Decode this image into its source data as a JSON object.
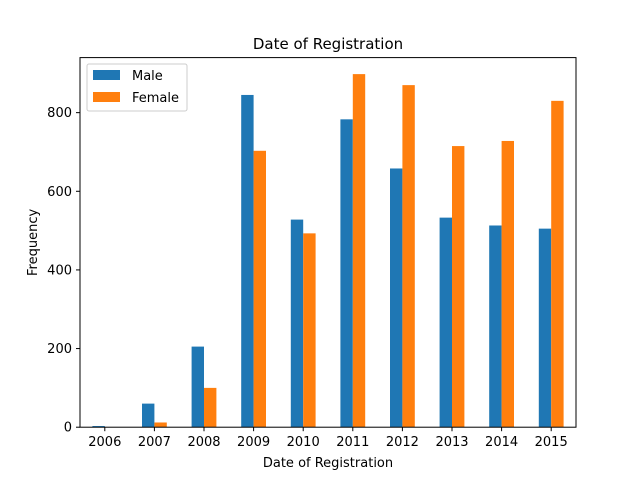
{
  "chart_data": {
    "type": "bar",
    "title": "Date of Registration",
    "xlabel": "Date of Registration",
    "ylabel": "Frequency",
    "categories": [
      "2006",
      "2007",
      "2008",
      "2009",
      "2010",
      "2011",
      "2012",
      "2013",
      "2014",
      "2015"
    ],
    "series": [
      {
        "name": "Male",
        "color": "#1f77b4",
        "values": [
          3,
          60,
          205,
          845,
          528,
          783,
          658,
          533,
          513,
          505
        ]
      },
      {
        "name": "Female",
        "color": "#ff7f0e",
        "values": [
          0,
          12,
          100,
          703,
          493,
          898,
          870,
          715,
          728,
          830
        ]
      }
    ],
    "ylim": [
      0,
      940
    ],
    "yticks": [
      0,
      200,
      400,
      600,
      800
    ],
    "grid": false,
    "legend_position": "top-left"
  }
}
